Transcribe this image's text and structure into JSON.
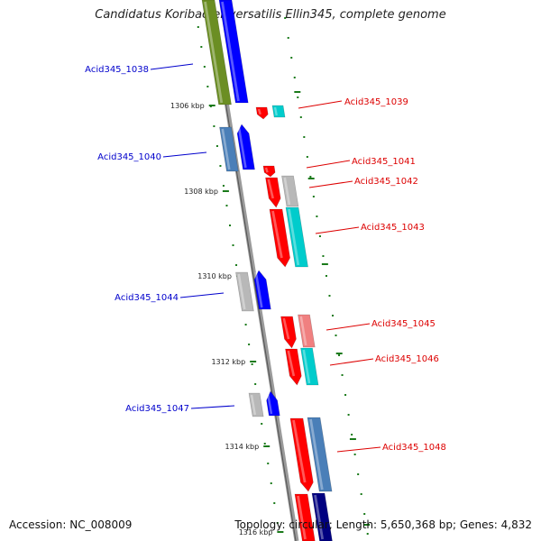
{
  "title": "Candidatus Koribacter versatilis Ellin345, complete genome",
  "footer": {
    "accession": "Accession: NC_008009",
    "summary": "Topology: circular; Length: 5,650,368 bp; Genes: 4,832"
  },
  "colors": {
    "backbone": "#8a8a8a",
    "tick": "#1a7a1a",
    "label_blue": "#0000cc",
    "label_red": "#dd0000",
    "blue": "#0000ff",
    "steelblue": "#4a7fb8",
    "navy": "#000080",
    "olive": "#6b8e23",
    "red": "#ff0000",
    "pink": "#f08080",
    "cyan": "#00cccc",
    "gray": "#b8b8b8"
  },
  "kbp_labels": [
    "1306 kbp",
    "1308 kbp",
    "1310 kbp",
    "1312 kbp",
    "1314 kbp",
    "1316 kbp"
  ],
  "gene_labels": [
    {
      "text": "Acid345_1038",
      "side": "left",
      "color": "label_blue"
    },
    {
      "text": "Acid345_1039",
      "side": "right",
      "color": "label_red"
    },
    {
      "text": "Acid345_1040",
      "side": "left",
      "color": "label_blue"
    },
    {
      "text": "Acid345_1041",
      "side": "right",
      "color": "label_red"
    },
    {
      "text": "Acid345_1042",
      "side": "right",
      "color": "label_red"
    },
    {
      "text": "Acid345_1043",
      "side": "right",
      "color": "label_red"
    },
    {
      "text": "Acid345_1044",
      "side": "left",
      "color": "label_blue"
    },
    {
      "text": "Acid345_1045",
      "side": "right",
      "color": "label_red"
    },
    {
      "text": "Acid345_1046",
      "side": "right",
      "color": "label_red"
    },
    {
      "text": "Acid345_1047",
      "side": "left",
      "color": "label_blue"
    },
    {
      "text": "Acid345_1048",
      "side": "right",
      "color": "label_red"
    }
  ]
}
